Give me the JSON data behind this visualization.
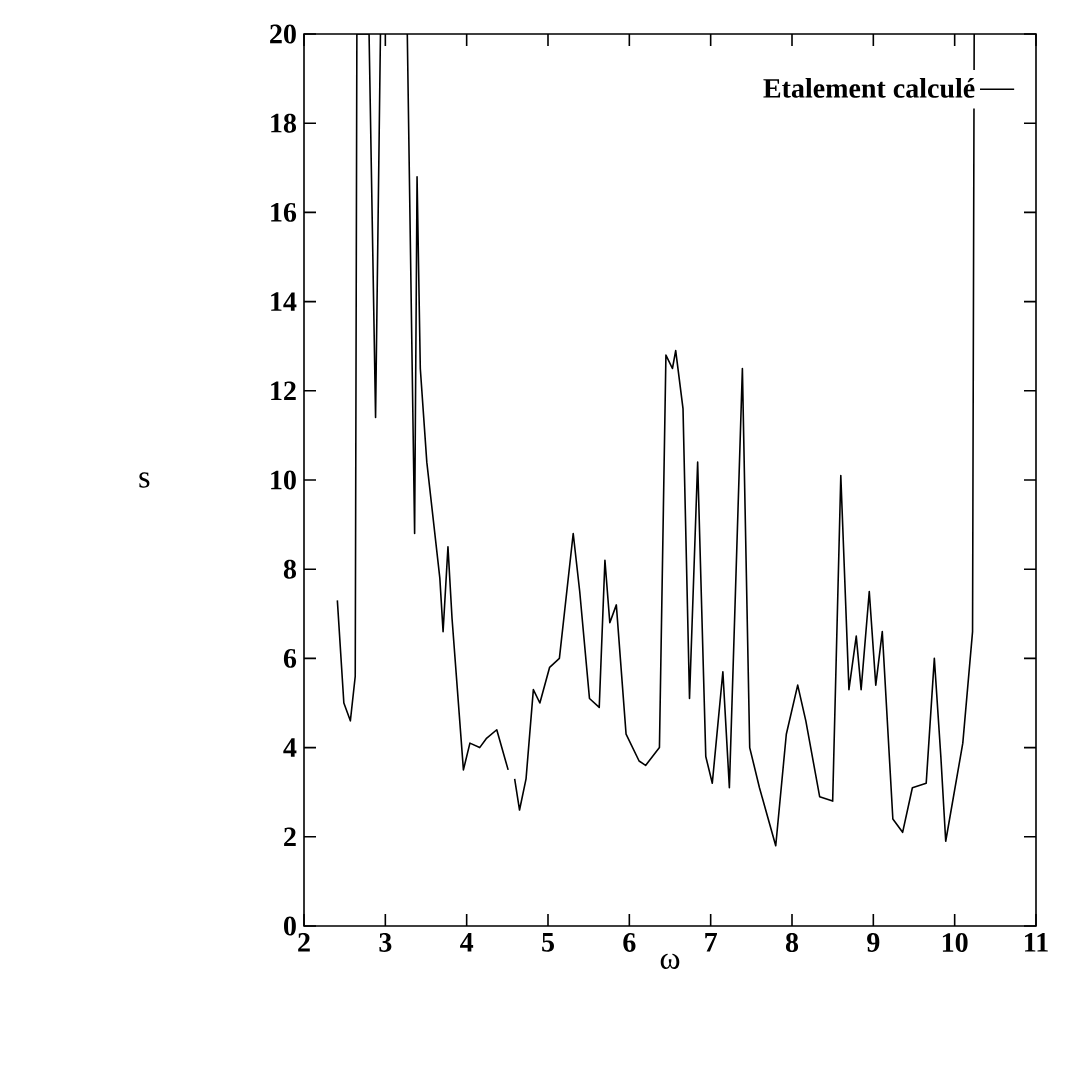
{
  "chart_data": {
    "type": "line",
    "xlabel": "ω",
    "ylabel": "s",
    "legend": "top right",
    "grid": false,
    "xlim": [
      2,
      11
    ],
    "xticks": [
      2,
      3,
      4,
      5,
      6,
      7,
      8,
      9,
      10,
      11
    ],
    "ylim": [
      0,
      20
    ],
    "yticks": [
      0,
      2,
      4,
      6,
      8,
      10,
      12,
      14,
      16,
      18,
      20
    ],
    "series": [
      {
        "name": "Etalement calculé",
        "color": "#000000",
        "x": [
          2.41,
          2.49,
          2.57,
          2.63,
          2.65,
          2.8,
          2.88,
          2.94,
          3.1,
          3.27,
          3.36,
          3.39,
          3.43,
          3.51,
          3.67,
          3.71,
          3.77,
          3.82,
          3.96,
          4.04,
          4.16,
          4.24,
          4.37,
          4.51,
          4.55,
          4.59,
          4.65,
          4.73,
          4.82,
          4.9,
          5.02,
          5.14,
          5.31,
          5.39,
          5.51,
          5.63,
          5.7,
          5.76,
          5.84,
          5.96,
          6.12,
          6.2,
          6.37,
          6.45,
          6.53,
          6.57,
          6.66,
          6.74,
          6.84,
          6.94,
          7.02,
          7.15,
          7.23,
          7.39,
          7.48,
          7.6,
          7.8,
          7.93,
          8.07,
          8.17,
          8.34,
          8.5,
          8.6,
          8.7,
          8.79,
          8.85,
          8.95,
          9.03,
          9.11,
          9.24,
          9.36,
          9.48,
          9.65,
          9.75,
          9.83,
          9.89,
          10.1,
          10.22,
          10.24
        ],
        "values": [
          7.3,
          5.0,
          4.6,
          5.6,
          20,
          20,
          11.4,
          20,
          null,
          20,
          8.8,
          16.8,
          12.5,
          10.4,
          7.8,
          6.6,
          8.5,
          6.9,
          3.5,
          4.1,
          4.0,
          4.2,
          4.4,
          3.5,
          null,
          3.3,
          2.6,
          3.3,
          5.3,
          5.0,
          5.8,
          6.0,
          8.8,
          7.5,
          5.1,
          4.9,
          8.2,
          6.8,
          7.2,
          4.3,
          3.7,
          3.6,
          4.0,
          12.8,
          12.5,
          12.9,
          11.6,
          5.1,
          10.4,
          3.8,
          3.2,
          5.7,
          3.1,
          12.5,
          4.0,
          3.1,
          1.8,
          4.3,
          5.4,
          4.6,
          2.9,
          2.8,
          10.1,
          5.3,
          6.5,
          5.3,
          7.5,
          5.4,
          6.6,
          2.4,
          2.1,
          3.1,
          3.2,
          6.0,
          3.8,
          1.9,
          4.1,
          6.6,
          20
        ]
      }
    ]
  }
}
